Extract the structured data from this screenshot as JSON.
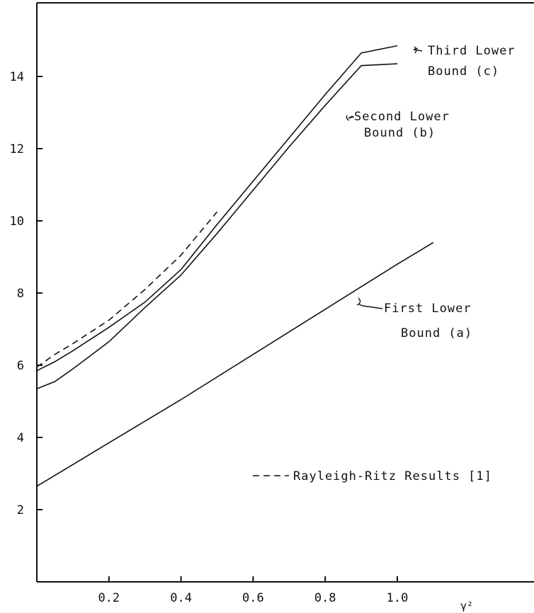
{
  "chart_data": {
    "type": "line",
    "title": "",
    "xlabel": "γ²",
    "ylabel": "",
    "xlim": [
      0,
      1.38
    ],
    "ylim": [
      0,
      15.9
    ],
    "grid": false,
    "x_ticks": [
      0.2,
      0.4,
      0.6,
      0.8,
      1.0
    ],
    "x_tick_labels": [
      "0.2",
      "0.4",
      "0.6",
      "0.8",
      "1.0"
    ],
    "y_ticks": [
      2,
      4,
      6,
      8,
      10,
      12,
      14
    ],
    "y_tick_labels": [
      "2",
      "4",
      "6",
      "8",
      "10",
      "12",
      "14"
    ],
    "series": [
      {
        "name": "Third Lower Bound (c)",
        "style": "solid",
        "x": [
          0,
          0.05,
          0.1,
          0.2,
          0.3,
          0.4,
          0.5,
          0.6,
          0.7,
          0.8,
          0.9,
          1.0
        ],
        "y": [
          5.85,
          6.1,
          6.4,
          7.05,
          7.75,
          8.65,
          9.9,
          11.1,
          12.3,
          13.5,
          14.65,
          14.85
        ]
      },
      {
        "name": "Second Lower Bound (b)",
        "style": "solid",
        "x": [
          0,
          0.05,
          0.1,
          0.2,
          0.3,
          0.4,
          0.5,
          0.6,
          0.7,
          0.8,
          0.9,
          1.0
        ],
        "y": [
          5.35,
          5.55,
          5.9,
          6.65,
          7.6,
          8.5,
          9.65,
          10.85,
          12.05,
          13.2,
          14.3,
          14.35
        ]
      },
      {
        "name": "First Lower Bound (a)",
        "style": "solid",
        "x": [
          0,
          0.2,
          0.4,
          0.6,
          0.8,
          1.0,
          1.1
        ],
        "y": [
          2.65,
          3.85,
          5.05,
          6.3,
          7.55,
          8.8,
          9.4
        ]
      },
      {
        "name": "Rayleigh-Ritz Results [1]",
        "style": "dashed",
        "x": [
          0,
          0.05,
          0.1,
          0.2,
          0.3,
          0.4,
          0.5
        ],
        "y": [
          5.95,
          6.3,
          6.6,
          7.25,
          8.1,
          9.05,
          10.25
        ]
      }
    ],
    "annotations": [
      {
        "series": 0,
        "text_lines": [
          "Third Lower",
          "Bound (c)"
        ]
      },
      {
        "series": 1,
        "text_lines": [
          "Second Lower",
          "Bound (b)"
        ]
      },
      {
        "series": 2,
        "text_lines": [
          "First Lower",
          "Bound (a)"
        ]
      }
    ],
    "legend": {
      "placement": "lower-right",
      "entries": [
        {
          "style": "dashed",
          "label": "Rayleigh-Ritz Results [1]"
        }
      ]
    }
  }
}
